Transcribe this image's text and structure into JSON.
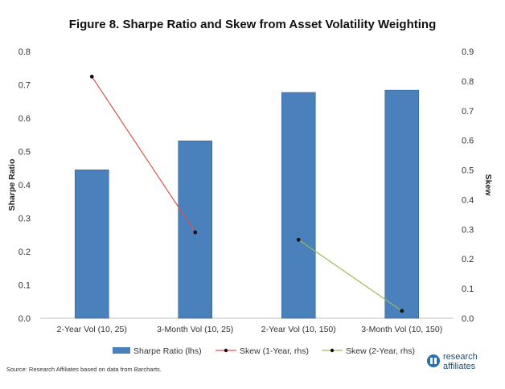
{
  "chart_data": {
    "type": "bar",
    "title": "Figure 8. Sharpe Ratio and Skew from Asset Volatility Weighting",
    "categories": [
      "2-Year Vol (10, 25)",
      "3-Month Vol (10, 25)",
      "2-Year Vol (10, 150)",
      "3-Month Vol (10, 150)"
    ],
    "ylabel": "Sharpe Ratio",
    "y2label": "Skew",
    "ylim": [
      0,
      0.8
    ],
    "y2lim": [
      0,
      0.9
    ],
    "yticks": [
      "0.0",
      "0.1",
      "0.2",
      "0.3",
      "0.4",
      "0.5",
      "0.6",
      "0.7",
      "0.8"
    ],
    "y2ticks": [
      "0.0",
      "0.1",
      "0.2",
      "0.3",
      "0.4",
      "0.5",
      "0.6",
      "0.7",
      "0.8",
      "0.9"
    ],
    "grid": false,
    "legend_position": "bottom",
    "series": [
      {
        "name": "Sharpe Ratio (lhs)",
        "type": "bar",
        "axis": "left",
        "color": "#4a81bd",
        "values": [
          0.445,
          0.532,
          0.677,
          0.684
        ]
      },
      {
        "name": "Skew (1-Year, rhs)",
        "type": "line",
        "axis": "right",
        "color": "#d9534f",
        "values": [
          0.815,
          0.29,
          null,
          null
        ]
      },
      {
        "name": "Skew (2-Year, rhs)",
        "type": "line",
        "axis": "right",
        "color": "#9bbb59",
        "values": [
          null,
          null,
          0.265,
          0.025
        ]
      }
    ]
  },
  "source": "Source: Research Affiliates based on data from Barcharts.",
  "logo": {
    "line1": "research",
    "line2": "affiliates",
    "color": "#2a6fb3"
  }
}
